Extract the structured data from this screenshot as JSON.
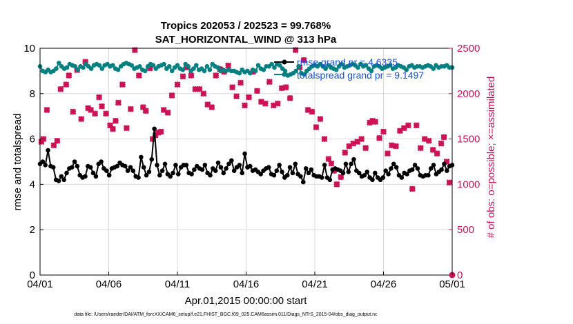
{
  "chart_data": {
    "type": "line",
    "title": "Tropics 202053 / 202523 = 99.768%",
    "subtitle": "SAT_HORIZONTAL_WIND @ 313 hPa",
    "xlabel": "Apr.01,2015 00:00:00 start",
    "ylabel_left": "rmse and totalspread",
    "ylabel_right": "# of obs: o=possible; ×=assimilated",
    "footer": "data file: /Users/raeder/DAI/ATM_forcXX/CAM6_setup/f.e21.FHIST_BGC.f09_025.CAM6assim.011/Diags_NTrS_2015-04/obs_diag_output.nc",
    "xlim": [
      0,
      30
    ],
    "ylim_left": [
      0,
      10
    ],
    "ylim_right": [
      0,
      2500
    ],
    "x_ticks": [
      0,
      5,
      10,
      15,
      20,
      25,
      30
    ],
    "x_tick_labels": [
      "04/01",
      "04/06",
      "04/11",
      "04/16",
      "04/21",
      "04/26",
      "05/01"
    ],
    "y_left_ticks": [
      "0",
      "2",
      "4",
      "6",
      "8",
      "10"
    ],
    "y_right_ticks": [
      "0",
      "500",
      "1000",
      "1500",
      "2000",
      "2500"
    ],
    "grid": true,
    "colors": {
      "rmse": "#000000",
      "spread": "#008080",
      "obs": "#cc1155",
      "legend_text": "#1a4fd6",
      "right_axis": "#cc1155"
    },
    "legend": [
      "rmse grand pr = 4.6335",
      "totalspread grand pr = 9.1497"
    ],
    "series": [
      {
        "name": "rmse",
        "axis": "left",
        "values": [
          4.9,
          5.0,
          4.85,
          5.5,
          4.8,
          4.75,
          4.2,
          4.15,
          4.35,
          4.2,
          4.5,
          4.7,
          4.75,
          5.0,
          4.8,
          4.4,
          4.3,
          4.35,
          4.8,
          4.75,
          4.5,
          4.35,
          4.9,
          5.0,
          4.7,
          4.6,
          4.4,
          4.7,
          4.75,
          4.8,
          4.95,
          4.85,
          4.8,
          4.6,
          4.75,
          4.6,
          4.35,
          4.3,
          5.2,
          4.75,
          4.4,
          4.55,
          5.1,
          6.45,
          4.85,
          4.4,
          4.6,
          4.9,
          4.45,
          4.35,
          4.5,
          4.85,
          4.45,
          4.75,
          4.85,
          4.85,
          4.5,
          4.45,
          4.65,
          4.8,
          4.7,
          4.65,
          4.85,
          4.5,
          4.4,
          4.7,
          4.6,
          4.95,
          4.75,
          4.5,
          4.7,
          4.9,
          5.05,
          4.6,
          4.75,
          4.85,
          4.5,
          5.35,
          4.75,
          4.8,
          4.6,
          4.65,
          4.55,
          4.45,
          4.6,
          4.7,
          4.75,
          4.45,
          4.4,
          4.6,
          4.85,
          4.55,
          4.3,
          4.4,
          4.75,
          4.5,
          4.9,
          4.45,
          4.35,
          4.1,
          4.7,
          4.5,
          4.65,
          4.4,
          4.35,
          4.35,
          4.3,
          4.85,
          4.3,
          4.2,
          4.65,
          4.7,
          4.65,
          4.6,
          4.5,
          4.9,
          4.55,
          4.9,
          5.1,
          4.6,
          4.5,
          4.35,
          4.4,
          4.55,
          4.3,
          4.2,
          4.5,
          4.3,
          4.2,
          4.3,
          4.6,
          4.45,
          4.7,
          4.9,
          4.75,
          4.4,
          4.3,
          4.5,
          4.45,
          4.6,
          4.65,
          4.85,
          4.7,
          4.4,
          4.35,
          4.4,
          4.4,
          4.7,
          4.85,
          4.45,
          4.55,
          4.65,
          4.9,
          4.6,
          4.8,
          4.85
        ]
      },
      {
        "name": "totalspread",
        "axis": "left",
        "values": [
          9.2,
          9.0,
          8.95,
          9.05,
          8.95,
          9.0,
          9.1,
          9.35,
          9.2,
          9.1,
          9.15,
          9.3,
          9.25,
          9.2,
          9.05,
          9.2,
          9.15,
          9.3,
          9.2,
          9.1,
          9.25,
          9.3,
          9.25,
          9.1,
          9.25,
          9.3,
          9.2,
          9.25,
          9.1,
          9.05,
          9.2,
          9.3,
          9.35,
          9.3,
          9.25,
          9.1,
          9.15,
          9.2,
          9.05,
          9.0,
          9.2,
          9.3,
          9.25,
          9.1,
          9.2,
          9.25,
          9.3,
          9.1,
          9.2,
          9.0,
          9.15,
          9.25,
          9.1,
          9.05,
          9.3,
          9.2,
          9.0,
          9.1,
          9.25,
          9.05,
          9.1,
          9.0,
          9.2,
          9.05,
          9.3,
          9.2,
          9.15,
          9.0,
          9.05,
          9.0,
          9.05,
          9.0,
          9.0,
          8.95,
          8.9,
          9.05,
          8.95,
          9.0,
          8.9,
          9.05,
          9.0,
          9.25,
          9.1,
          9.05,
          9.2,
          9.2,
          9.3,
          9.15,
          9.3,
          9.25,
          9.1,
          9.0,
          8.8,
          8.85,
          8.9,
          9.0,
          9.2,
          8.9,
          8.85,
          9.0,
          9.1,
          9.2,
          9.25,
          9.2,
          9.3,
          9.2,
          9.1,
          9.25,
          9.15,
          9.1,
          9.05,
          9.2,
          9.3,
          9.15,
          9.2,
          9.25,
          9.3,
          9.25,
          9.15,
          9.3,
          9.2,
          9.25,
          9.1,
          9.0,
          9.2,
          9.25,
          9.2,
          9.1,
          9.15,
          9.2,
          9.25,
          9.1,
          9.15,
          9.25,
          9.2,
          9.15,
          9.05,
          9.2,
          9.25,
          9.15,
          9.2,
          9.2,
          9.15,
          9.2,
          9.25,
          9.2,
          9.1,
          9.25,
          9.15,
          9.2,
          9.2,
          9.25,
          9.15,
          9.15
        ]
      },
      {
        "name": "obs_assimilated",
        "axis": "right",
        "points": [
          [
            0.1,
            1470
          ],
          [
            0.25,
            1500
          ],
          [
            0.5,
            1820
          ],
          [
            1.0,
            1430
          ],
          [
            1.25,
            1480
          ],
          [
            1.5,
            2050
          ],
          [
            1.9,
            2100
          ],
          [
            2.1,
            2200
          ],
          [
            2.4,
            1800
          ],
          [
            2.7,
            2260
          ],
          [
            3.0,
            1720
          ],
          [
            3.3,
            2350
          ],
          [
            3.5,
            1840
          ],
          [
            3.7,
            1820
          ],
          [
            4.0,
            1780
          ],
          [
            4.3,
            1960
          ],
          [
            4.5,
            1860
          ],
          [
            4.8,
            1780
          ],
          [
            5.1,
            1650
          ],
          [
            5.3,
            1610
          ],
          [
            5.5,
            1700
          ],
          [
            5.7,
            1900
          ],
          [
            6.0,
            2100
          ],
          [
            6.3,
            1620
          ],
          [
            6.6,
            1830
          ],
          [
            6.9,
            2480
          ],
          [
            7.2,
            2200
          ],
          [
            7.5,
            1850
          ],
          [
            7.7,
            1810
          ],
          [
            8.0,
            2280
          ],
          [
            8.2,
            1500
          ],
          [
            8.4,
            1540
          ],
          [
            8.6,
            1570
          ],
          [
            8.8,
            1580
          ],
          [
            9.0,
            1820
          ],
          [
            9.3,
            1790
          ],
          [
            9.6,
            1980
          ],
          [
            10.0,
            2100
          ],
          [
            10.4,
            2190
          ],
          [
            10.7,
            2290
          ],
          [
            11.0,
            2200
          ],
          [
            11.3,
            2050
          ],
          [
            11.6,
            2050
          ],
          [
            11.9,
            2000
          ],
          [
            12.2,
            1880
          ],
          [
            12.5,
            1850
          ],
          [
            12.8,
            2200
          ],
          [
            13.1,
            2270
          ],
          [
            13.4,
            2240
          ],
          [
            13.7,
            2310
          ],
          [
            14.0,
            2070
          ],
          [
            14.3,
            1970
          ],
          [
            14.6,
            2120
          ],
          [
            14.9,
            1870
          ],
          [
            15.2,
            1960
          ],
          [
            15.5,
            2240
          ],
          [
            15.8,
            2030
          ],
          [
            16.1,
            1910
          ],
          [
            16.4,
            1890
          ],
          [
            16.7,
            2130
          ],
          [
            17.0,
            1870
          ],
          [
            17.3,
            1890
          ],
          [
            17.6,
            2060
          ],
          [
            17.9,
            2070
          ],
          [
            18.2,
            1950
          ],
          [
            18.6,
            2480
          ],
          [
            18.9,
            2290
          ],
          [
            19.2,
            2370
          ],
          [
            19.5,
            1820
          ],
          [
            19.8,
            1800
          ],
          [
            20.1,
            1630
          ],
          [
            20.4,
            1720
          ],
          [
            20.7,
            1500
          ],
          [
            21.0,
            1280
          ],
          [
            21.2,
            1230
          ],
          [
            21.4,
            1150
          ],
          [
            21.6,
            1000
          ],
          [
            21.9,
            1080
          ],
          [
            22.2,
            1350
          ],
          [
            22.5,
            1420
          ],
          [
            22.8,
            1450
          ],
          [
            23.1,
            1470
          ],
          [
            23.4,
            1500
          ],
          [
            23.7,
            1400
          ],
          [
            24.0,
            1680
          ],
          [
            24.2,
            1700
          ],
          [
            24.4,
            1690
          ],
          [
            24.7,
            1510
          ],
          [
            25.0,
            1580
          ],
          [
            25.3,
            1340
          ],
          [
            25.6,
            1430
          ],
          [
            25.9,
            1420
          ],
          [
            26.2,
            1590
          ],
          [
            26.5,
            1620
          ],
          [
            26.8,
            1650
          ],
          [
            27.1,
            950
          ],
          [
            27.4,
            1650
          ],
          [
            27.7,
            1400
          ],
          [
            28.0,
            1500
          ],
          [
            28.3,
            1480
          ],
          [
            28.6,
            1380
          ],
          [
            28.9,
            1340
          ],
          [
            29.2,
            1450
          ],
          [
            29.4,
            1520
          ],
          [
            29.6,
            1250
          ],
          [
            29.8,
            1020
          ]
        ]
      },
      {
        "name": "obs_possible",
        "axis": "right",
        "points": [
          [
            30.0,
            0
          ]
        ]
      }
    ]
  }
}
